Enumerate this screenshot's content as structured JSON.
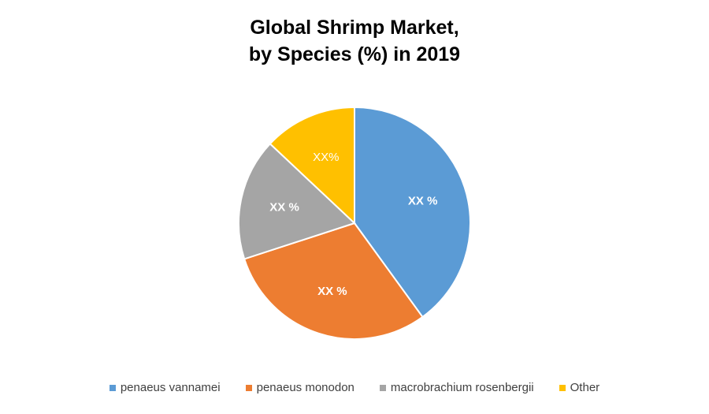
{
  "chart_data": {
    "type": "pie",
    "title_lines": [
      "Global Shrimp Market,",
      "by Species (%) in 2019"
    ],
    "categories": [
      "penaeus vannamei",
      "penaeus monodon",
      "macrobrachium rosenbergii",
      "Other"
    ],
    "values": [
      40,
      30,
      17,
      13
    ],
    "data_labels": [
      "XX %",
      "XX %",
      "XX %",
      "XX%"
    ],
    "colors": [
      "#5B9BD5",
      "#ED7D31",
      "#A5A5A5",
      "#FFC000"
    ],
    "legend_position": "bottom",
    "start_angle": "12 o'clock",
    "direction": "clockwise"
  }
}
